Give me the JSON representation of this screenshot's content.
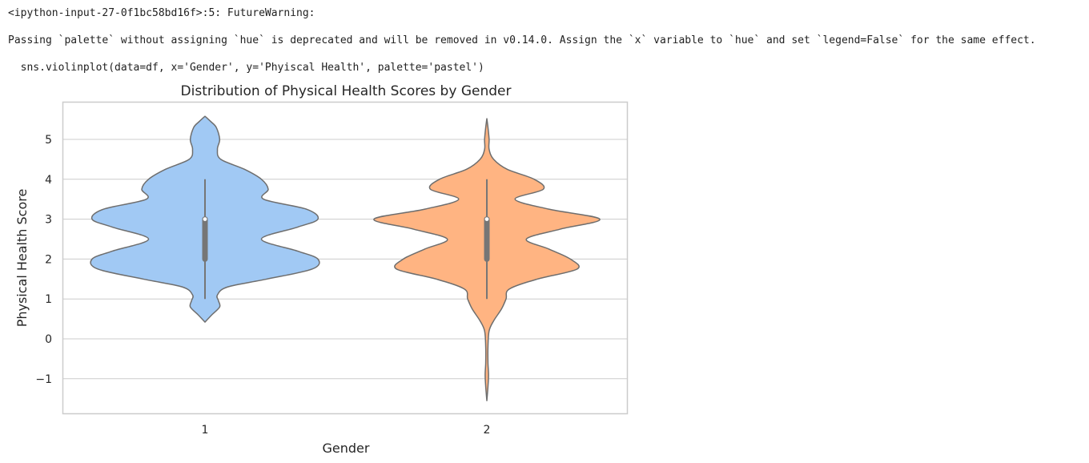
{
  "output": {
    "warning_header": "<ipython-input-27-0f1bc58bd16f>:5: FutureWarning:",
    "warning_message": "Passing `palette` without assigning `hue` is deprecated and will be removed in v0.14.0. Assign the `x` variable to `hue` and set `legend=False` for the same effect.",
    "code_line": "  sns.violinplot(data=df, x='Gender', y='Phyiscal Health', palette='pastel')"
  },
  "chart_data": {
    "type": "violin",
    "title": "Distribution of Physical Health Scores by Gender",
    "xlabel": "Gender",
    "ylabel": "Physical Health Score",
    "categories": [
      "1",
      "2"
    ],
    "ylim": [
      -1.9,
      5.95
    ],
    "yticks": [
      -1,
      0,
      1,
      2,
      3,
      4,
      5
    ],
    "ytick_labels": [
      "−1",
      "0",
      "1",
      "2",
      "3",
      "4",
      "5"
    ],
    "grid": "horizontal",
    "colors": {
      "violin_1": "#a1c9f4",
      "violin_2": "#ffb482",
      "outline": "#6e6e6e",
      "box": "#767676",
      "median": "#ffffff",
      "grid": "#cccccc",
      "frame": "#cccccc"
    },
    "violins": [
      {
        "category": "1",
        "quartiles": {
          "q1": 2,
          "median": 3,
          "q3": 3
        },
        "whiskers": [
          1,
          4
        ],
        "density": [
          [
            0.42,
            0.0
          ],
          [
            0.6,
            0.06
          ],
          [
            0.8,
            0.13
          ],
          [
            0.95,
            0.12
          ],
          [
            1.1,
            0.11
          ],
          [
            1.3,
            0.2
          ],
          [
            1.5,
            0.55
          ],
          [
            1.75,
            0.95
          ],
          [
            2.0,
            1.0
          ],
          [
            2.2,
            0.82
          ],
          [
            2.5,
            0.5
          ],
          [
            2.8,
            0.82
          ],
          [
            3.0,
            1.0
          ],
          [
            3.25,
            0.9
          ],
          [
            3.5,
            0.52
          ],
          [
            3.75,
            0.56
          ],
          [
            4.0,
            0.5
          ],
          [
            4.25,
            0.35
          ],
          [
            4.5,
            0.14
          ],
          [
            4.75,
            0.11
          ],
          [
            5.0,
            0.13
          ],
          [
            5.3,
            0.1
          ],
          [
            5.45,
            0.05
          ],
          [
            5.58,
            0.0
          ]
        ]
      },
      {
        "category": "2",
        "quartiles": {
          "q1": 2,
          "median": 3,
          "q3": 3
        },
        "whiskers": [
          1,
          4
        ],
        "density": [
          [
            -1.55,
            0.0
          ],
          [
            -1.2,
            0.01
          ],
          [
            -0.9,
            0.015
          ],
          [
            -0.6,
            0.01
          ],
          [
            -0.2,
            0.01
          ],
          [
            0.2,
            0.02
          ],
          [
            0.45,
            0.06
          ],
          [
            0.75,
            0.13
          ],
          [
            1.0,
            0.17
          ],
          [
            1.25,
            0.2
          ],
          [
            1.5,
            0.45
          ],
          [
            1.75,
            0.8
          ],
          [
            2.0,
            0.74
          ],
          [
            2.25,
            0.55
          ],
          [
            2.5,
            0.35
          ],
          [
            2.75,
            0.65
          ],
          [
            3.0,
            1.0
          ],
          [
            3.25,
            0.55
          ],
          [
            3.5,
            0.25
          ],
          [
            3.75,
            0.5
          ],
          [
            4.0,
            0.42
          ],
          [
            4.25,
            0.18
          ],
          [
            4.5,
            0.06
          ],
          [
            4.75,
            0.02
          ],
          [
            5.0,
            0.02
          ],
          [
            5.3,
            0.01
          ],
          [
            5.52,
            0.0
          ]
        ]
      }
    ]
  }
}
